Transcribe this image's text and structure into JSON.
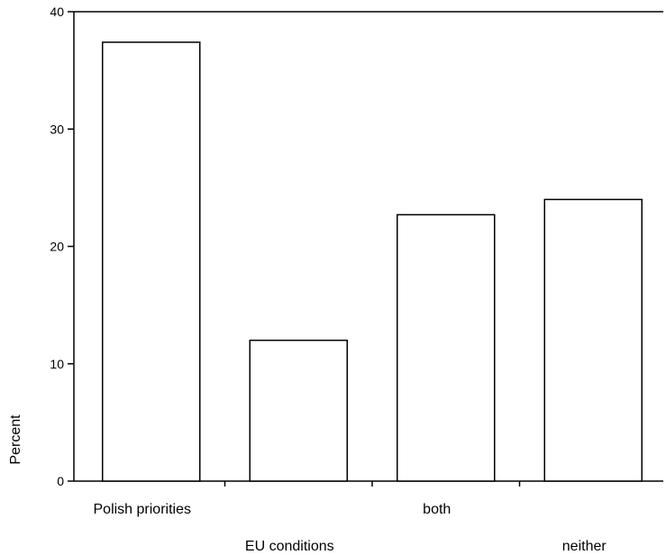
{
  "chart_data": {
    "type": "bar",
    "categories": [
      "Polish priorities",
      "EU conditions",
      "both",
      "neither"
    ],
    "values": [
      37.4,
      12.0,
      22.7,
      24.0
    ],
    "title": "",
    "xlabel": "",
    "ylabel": "Percent",
    "ylim": [
      0,
      40
    ],
    "yticks": [
      0,
      10,
      20,
      30,
      40
    ],
    "grid": false,
    "legend": "none",
    "bar_fill": "#ffffff",
    "bar_stroke": "#000000"
  }
}
